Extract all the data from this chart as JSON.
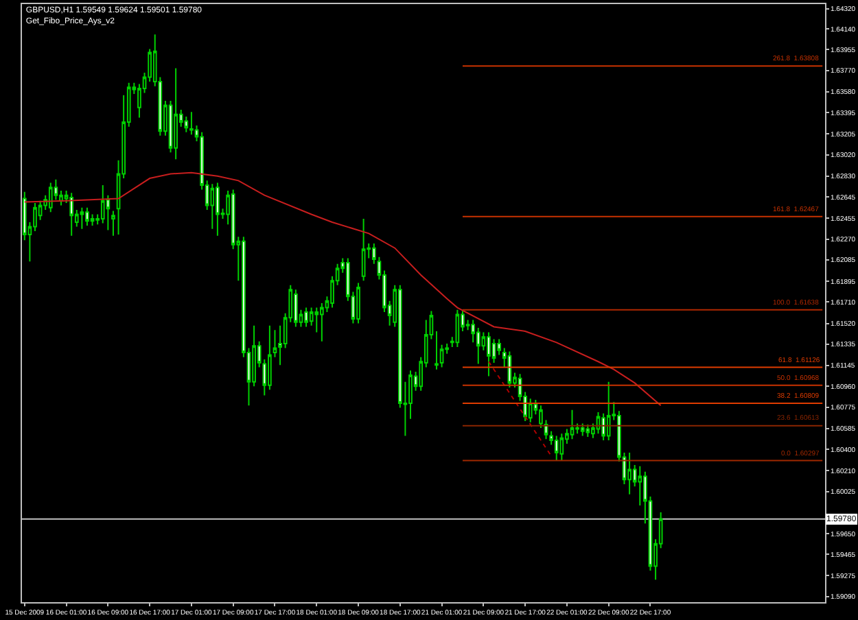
{
  "chart_data": {
    "type": "candlestick",
    "title": "GBPUSD,H1 1.59549 1.59624 1.59501 1.59780",
    "subtitle": "Get_Fibo_Price_Ays_v2",
    "color": "#00d000",
    "legend": false,
    "grid": false,
    "categories": [
      "15 Dec 2009",
      null,
      null,
      null,
      null,
      null,
      null,
      null,
      "16 Dec 01:00",
      null,
      null,
      null,
      null,
      null,
      null,
      null,
      "16 Dec 09:00",
      null,
      null,
      null,
      null,
      null,
      null,
      null,
      "16 Dec 17:00",
      null,
      null,
      null,
      null,
      null,
      null,
      null,
      "17 Dec 01:00",
      null,
      null,
      null,
      null,
      null,
      null,
      null,
      "17 Dec 09:00",
      null,
      null,
      null,
      null,
      null,
      null,
      null,
      "17 Dec 17:00",
      null,
      null,
      null,
      null,
      null,
      null,
      null,
      "18 Dec 01:00",
      null,
      null,
      null,
      null,
      null,
      null,
      null,
      "18 Dec 09:00",
      null,
      null,
      null,
      null,
      null,
      null,
      null,
      "18 Dec 17:00",
      null,
      null,
      null,
      null,
      null,
      null,
      null,
      "21 Dec 01:00",
      null,
      null,
      null,
      null,
      null,
      null,
      null,
      "21 Dec 09:00",
      null,
      null,
      null,
      null,
      null,
      null,
      null,
      "21 Dec 17:00",
      null,
      null,
      null,
      null,
      null,
      null,
      null,
      "22 Dec 01:00",
      null,
      null,
      null,
      null,
      null,
      null,
      null,
      "22 Dec 09:00",
      null,
      null,
      null,
      null,
      null,
      null,
      null,
      "22 Dec 17:00",
      null,
      null,
      null,
      null,
      null,
      null,
      null,
      null,
      null,
      null,
      null,
      null,
      null,
      null,
      null,
      null,
      null,
      null,
      null,
      null,
      null,
      null,
      null,
      null,
      null,
      null,
      null,
      null,
      null,
      null,
      null,
      null,
      null
    ],
    "ohlc": [
      [
        1.6263,
        1.6269,
        1.6226,
        1.6231
      ],
      [
        1.6231,
        1.6242,
        1.6207,
        1.6238
      ],
      [
        1.6238,
        1.6259,
        1.6234,
        1.6255
      ],
      [
        1.6248,
        1.6261,
        1.6244,
        1.6257
      ],
      [
        1.6257,
        1.6266,
        1.6253,
        1.6262
      ],
      [
        1.6255,
        1.6277,
        1.6251,
        1.6273
      ],
      [
        1.6273,
        1.628,
        1.6262,
        1.6266
      ],
      [
        1.6261,
        1.627,
        1.6257,
        1.6266
      ],
      [
        1.6263,
        1.627,
        1.6259,
        1.6266
      ],
      [
        1.6264,
        1.6268,
        1.623,
        1.6248
      ],
      [
        1.6242,
        1.6253,
        1.6238,
        1.6249
      ],
      [
        1.6249,
        1.6255,
        1.6236,
        1.6251
      ],
      [
        1.6251,
        1.6255,
        1.6239,
        1.6243
      ],
      [
        1.6243,
        1.6249,
        1.6239,
        1.6245
      ],
      [
        1.6244,
        1.6249,
        1.624,
        1.6245
      ],
      [
        1.6245,
        1.6275,
        1.6241,
        1.6261
      ],
      [
        1.6262,
        1.6266,
        1.6235,
        1.6254
      ],
      [
        1.6245,
        1.6252,
        1.623,
        1.6248
      ],
      [
        1.6254,
        1.6297,
        1.6231,
        1.6285
      ],
      [
        1.6285,
        1.6355,
        1.6281,
        1.6331
      ],
      [
        1.6331,
        1.6366,
        1.6327,
        1.6362
      ],
      [
        1.6362,
        1.6366,
        1.6356,
        1.636
      ],
      [
        1.6344,
        1.6365,
        1.6335,
        1.6361
      ],
      [
        1.6361,
        1.6375,
        1.6357,
        1.6371
      ],
      [
        1.6371,
        1.6396,
        1.6367,
        1.6393
      ],
      [
        1.6367,
        1.6409,
        1.6363,
        1.6394
      ],
      [
        1.6367,
        1.6371,
        1.6319,
        1.6323
      ],
      [
        1.6323,
        1.635,
        1.6319,
        1.6346
      ],
      [
        1.6346,
        1.635,
        1.6304,
        1.6308
      ],
      [
        1.6308,
        1.6379,
        1.6298,
        1.6338
      ],
      [
        1.6338,
        1.6342,
        1.6327,
        1.6331
      ],
      [
        1.6332,
        1.6336,
        1.6322,
        1.6326
      ],
      [
        1.6325,
        1.634,
        1.632,
        1.6324
      ],
      [
        1.6324,
        1.6328,
        1.6314,
        1.6318
      ],
      [
        1.6318,
        1.6322,
        1.6271,
        1.6275
      ],
      [
        1.6275,
        1.6279,
        1.6253,
        1.6257
      ],
      [
        1.6257,
        1.6276,
        1.6236,
        1.6272
      ],
      [
        1.6273,
        1.6277,
        1.623,
        1.6249
      ],
      [
        1.625,
        1.6254,
        1.6245,
        1.6249
      ],
      [
        1.6249,
        1.627,
        1.624,
        1.6266
      ],
      [
        1.6267,
        1.6271,
        1.6218,
        1.6222
      ],
      [
        1.6222,
        1.6229,
        1.619,
        1.6225
      ],
      [
        1.6225,
        1.6229,
        1.6122,
        1.6126
      ],
      [
        1.6126,
        1.613,
        1.6079,
        1.61
      ],
      [
        1.61,
        1.615,
        1.6096,
        1.6132
      ],
      [
        1.6132,
        1.6136,
        1.6113,
        1.6117
      ],
      [
        1.6116,
        1.612,
        1.6088,
        1.6097
      ],
      [
        1.6097,
        1.615,
        1.6093,
        1.6124
      ],
      [
        1.6126,
        1.6146,
        1.6122,
        1.613
      ],
      [
        1.6134,
        1.615,
        1.6115,
        1.6131
      ],
      [
        1.6134,
        1.6161,
        1.613,
        1.6157
      ],
      [
        1.6157,
        1.6186,
        1.6153,
        1.6182
      ],
      [
        1.6178,
        1.6182,
        1.6149,
        1.6153
      ],
      [
        1.6153,
        1.6164,
        1.6149,
        1.616
      ],
      [
        1.6162,
        1.6166,
        1.6149,
        1.6153
      ],
      [
        1.6154,
        1.6166,
        1.615,
        1.6162
      ],
      [
        1.6162,
        1.6166,
        1.6144,
        1.616
      ],
      [
        1.616,
        1.617,
        1.6136,
        1.6166
      ],
      [
        1.6166,
        1.6176,
        1.6162,
        1.6172
      ],
      [
        1.617,
        1.6194,
        1.6166,
        1.619
      ],
      [
        1.619,
        1.6205,
        1.6186,
        1.6201
      ],
      [
        1.6206,
        1.621,
        1.6197,
        1.6201
      ],
      [
        1.6206,
        1.621,
        1.6172,
        1.6176
      ],
      [
        1.6176,
        1.618,
        1.6152,
        1.6156
      ],
      [
        1.6156,
        1.6188,
        1.6152,
        1.6184
      ],
      [
        1.6194,
        1.6245,
        1.619,
        1.6218
      ],
      [
        1.6218,
        1.6223,
        1.621,
        1.6219
      ],
      [
        1.6219,
        1.6223,
        1.6205,
        1.6209
      ],
      [
        1.6207,
        1.6211,
        1.6191,
        1.6195
      ],
      [
        1.6195,
        1.6199,
        1.6162,
        1.6166
      ],
      [
        1.6168,
        1.6172,
        1.615,
        1.6159
      ],
      [
        1.6153,
        1.6186,
        1.6149,
        1.6182
      ],
      [
        1.6182,
        1.6186,
        1.6077,
        1.6081
      ],
      [
        1.608,
        1.61,
        1.6052,
        1.6081
      ],
      [
        1.6081,
        1.611,
        1.6067,
        1.6106
      ],
      [
        1.6105,
        1.6109,
        1.6092,
        1.6096
      ],
      [
        1.6096,
        1.6122,
        1.6092,
        1.6118
      ],
      [
        1.6117,
        1.6155,
        1.6113,
        1.6142
      ],
      [
        1.6142,
        1.6163,
        1.6138,
        1.6159
      ],
      [
        1.6115,
        1.6145,
        1.6111,
        1.6116
      ],
      [
        1.6117,
        1.6133,
        1.6113,
        1.6129
      ],
      [
        1.6129,
        1.6134,
        1.6125,
        1.613
      ],
      [
        1.6135,
        1.614,
        1.6131,
        1.6136
      ],
      [
        1.6135,
        1.6164,
        1.6131,
        1.616
      ],
      [
        1.616,
        1.6164,
        1.6145,
        1.6149
      ],
      [
        1.6151,
        1.6155,
        1.6146,
        1.615
      ],
      [
        1.6151,
        1.6155,
        1.6135,
        1.6143
      ],
      [
        1.6144,
        1.6148,
        1.6116,
        1.6132
      ],
      [
        1.6132,
        1.6144,
        1.6128,
        1.614
      ],
      [
        1.614,
        1.6144,
        1.6105,
        1.6123
      ],
      [
        1.6134,
        1.6138,
        1.6117,
        1.6121
      ],
      [
        1.6134,
        1.6138,
        1.6124,
        1.6128
      ],
      [
        1.6126,
        1.613,
        1.6113,
        1.6121
      ],
      [
        1.6123,
        1.6127,
        1.6095,
        1.6099
      ],
      [
        1.6099,
        1.6108,
        1.6095,
        1.6104
      ],
      [
        1.6103,
        1.6107,
        1.6083,
        1.6087
      ],
      [
        1.6087,
        1.6091,
        1.6065,
        1.6069
      ],
      [
        1.6068,
        1.6085,
        1.6064,
        1.6081
      ],
      [
        1.608,
        1.6084,
        1.6071,
        1.6075
      ],
      [
        1.6063,
        1.6079,
        1.6059,
        1.6075
      ],
      [
        1.6062,
        1.6066,
        1.6049,
        1.6053
      ],
      [
        1.6052,
        1.6056,
        1.6044,
        1.6048
      ],
      [
        1.6048,
        1.6052,
        1.603,
        1.6037
      ],
      [
        1.6036,
        1.6054,
        1.603,
        1.605
      ],
      [
        1.6049,
        1.6058,
        1.6045,
        1.6054
      ],
      [
        1.6053,
        1.6075,
        1.6049,
        1.6059
      ],
      [
        1.6058,
        1.6063,
        1.6054,
        1.6059
      ],
      [
        1.6059,
        1.6063,
        1.6052,
        1.6056
      ],
      [
        1.6058,
        1.6062,
        1.6051,
        1.6055
      ],
      [
        1.6054,
        1.6063,
        1.605,
        1.6059
      ],
      [
        1.6058,
        1.6073,
        1.6054,
        1.6069
      ],
      [
        1.6068,
        1.6072,
        1.6048,
        1.6052
      ],
      [
        1.6052,
        1.61,
        1.6048,
        1.607
      ],
      [
        1.6071,
        1.6082,
        1.6066,
        1.607
      ],
      [
        1.607,
        1.6074,
        1.6029,
        1.6033
      ],
      [
        1.6033,
        1.6037,
        1.6009,
        1.6013
      ],
      [
        1.6013,
        1.6037,
        1.6,
        1.6022
      ],
      [
        1.6022,
        1.6026,
        1.6007,
        1.6011
      ],
      [
        1.6011,
        1.6025,
        1.599,
        1.6016
      ],
      [
        1.6016,
        1.602,
        1.5974,
        1.5994
      ],
      [
        1.5994,
        1.5998,
        1.5932,
        1.5936
      ],
      [
        1.5936,
        1.596,
        1.5924,
        1.5956
      ],
      [
        1.5956,
        1.5984,
        1.5952,
        1.5978
      ],
      null,
      null,
      null,
      null,
      null,
      null,
      null,
      null,
      null,
      null,
      null,
      null,
      null,
      null,
      null,
      null,
      null,
      null,
      null,
      null,
      null,
      null,
      null,
      null,
      null,
      null,
      null,
      null,
      null,
      null,
      null
    ],
    "series": [
      {
        "type": "line",
        "color": "#c81e1e",
        "values": [
          1.626,
          null,
          null,
          null,
          null,
          null,
          null,
          null,
          1.6261,
          null,
          null,
          null,
          null,
          null,
          null,
          null,
          null,
          null,
          1.6263,
          null,
          null,
          null,
          null,
          null,
          1.6281,
          null,
          null,
          null,
          1.6285,
          null,
          null,
          null,
          1.6286,
          null,
          null,
          null,
          null,
          1.6283,
          null,
          null,
          null,
          1.6279,
          null,
          null,
          null,
          null,
          1.6266,
          null,
          null,
          null,
          null,
          null,
          null,
          null,
          null,
          1.6249,
          null,
          null,
          null,
          1.6242,
          null,
          null,
          null,
          null,
          null,
          null,
          1.6232,
          null,
          null,
          null,
          null,
          1.6219,
          null,
          null,
          null,
          null,
          1.6195,
          null,
          null,
          null,
          null,
          1.6174,
          null,
          1.6166,
          null,
          null,
          null,
          null,
          null,
          null,
          1.6149,
          null,
          null,
          null,
          null,
          null,
          1.6145,
          null,
          null,
          null,
          null,
          null,
          1.6135,
          null,
          null,
          null,
          null,
          null,
          null,
          null,
          1.6118,
          null,
          null,
          1.6111,
          null,
          null,
          null,
          1.6099,
          null,
          null,
          null,
          null,
          1.6079,
          null,
          null,
          null,
          null,
          null,
          null,
          null,
          null,
          null,
          null,
          null,
          null,
          null,
          null,
          null,
          null,
          null,
          null,
          null,
          null,
          null,
          null,
          null,
          null,
          null,
          null,
          null,
          null,
          null,
          null,
          null
        ]
      },
      {
        "type": "line",
        "color": "#b00000",
        "line_style": "dotted",
        "values": [
          null,
          null,
          null,
          null,
          null,
          null,
          null,
          null,
          null,
          null,
          null,
          null,
          null,
          null,
          null,
          null,
          null,
          null,
          null,
          null,
          null,
          null,
          null,
          null,
          null,
          null,
          null,
          null,
          null,
          null,
          null,
          null,
          null,
          null,
          null,
          null,
          null,
          null,
          null,
          null,
          null,
          null,
          null,
          null,
          null,
          null,
          null,
          null,
          null,
          null,
          null,
          null,
          null,
          null,
          null,
          null,
          null,
          null,
          null,
          null,
          null,
          null,
          null,
          null,
          null,
          null,
          null,
          null,
          null,
          null,
          null,
          null,
          null,
          null,
          null,
          null,
          null,
          null,
          null,
          null,
          null,
          null,
          null,
          null,
          null,
          null,
          null,
          null,
          null,
          1.6118,
          null,
          null,
          null,
          null,
          null,
          null,
          null,
          null,
          null,
          null,
          null,
          1.6034,
          null,
          null,
          null,
          null,
          null,
          null,
          null,
          null,
          null,
          null,
          null,
          null,
          null,
          null,
          null,
          null,
          null,
          null,
          null,
          null,
          null,
          null,
          null,
          null,
          null,
          null,
          null,
          null,
          null,
          null,
          null,
          null,
          null,
          null,
          null,
          null,
          null,
          null,
          null,
          null,
          null,
          null,
          null,
          null,
          null,
          null,
          null,
          null,
          null,
          null,
          null,
          null
        ]
      },
      {
        "type": "line",
        "name": "261.8  1.63808",
        "color": "#c83200",
        "values": [
          null,
          null,
          null,
          null,
          null,
          null,
          null,
          null,
          null,
          null,
          null,
          null,
          null,
          null,
          null,
          null,
          null,
          null,
          null,
          null,
          null,
          null,
          null,
          null,
          null,
          null,
          null,
          null,
          null,
          null,
          null,
          null,
          null,
          null,
          null,
          null,
          null,
          null,
          null,
          null,
          null,
          null,
          null,
          null,
          null,
          null,
          null,
          null,
          null,
          null,
          null,
          null,
          null,
          null,
          null,
          null,
          null,
          null,
          null,
          null,
          null,
          null,
          null,
          null,
          null,
          null,
          null,
          null,
          null,
          null,
          null,
          null,
          null,
          null,
          null,
          null,
          null,
          null,
          null,
          null,
          null,
          null,
          null,
          null,
          1.6381,
          null,
          null,
          null,
          null,
          null,
          null,
          null,
          null,
          null,
          null,
          null,
          null,
          null,
          null,
          null,
          null,
          null,
          null,
          null,
          null,
          null,
          null,
          null,
          null,
          null,
          null,
          null,
          null,
          null,
          null,
          null,
          null,
          null,
          null,
          null,
          null,
          null,
          null,
          null,
          null,
          null,
          null,
          null,
          null,
          null,
          null,
          null,
          null,
          null,
          null,
          null,
          null,
          null,
          null,
          null,
          null,
          null,
          null,
          null,
          null,
          null,
          null,
          null,
          null,
          null,
          null,
          null,
          null,
          1.6381
        ]
      },
      {
        "type": "line",
        "name": "161.8  1.62467",
        "color": "#c83200",
        "values": [
          null,
          null,
          null,
          null,
          null,
          null,
          null,
          null,
          null,
          null,
          null,
          null,
          null,
          null,
          null,
          null,
          null,
          null,
          null,
          null,
          null,
          null,
          null,
          null,
          null,
          null,
          null,
          null,
          null,
          null,
          null,
          null,
          null,
          null,
          null,
          null,
          null,
          null,
          null,
          null,
          null,
          null,
          null,
          null,
          null,
          null,
          null,
          null,
          null,
          null,
          null,
          null,
          null,
          null,
          null,
          null,
          null,
          null,
          null,
          null,
          null,
          null,
          null,
          null,
          null,
          null,
          null,
          null,
          null,
          null,
          null,
          null,
          null,
          null,
          null,
          null,
          null,
          null,
          null,
          null,
          null,
          null,
          null,
          null,
          1.6247,
          null,
          null,
          null,
          null,
          null,
          null,
          null,
          null,
          null,
          null,
          null,
          null,
          null,
          null,
          null,
          null,
          null,
          null,
          null,
          null,
          null,
          null,
          null,
          null,
          null,
          null,
          null,
          null,
          null,
          null,
          null,
          null,
          null,
          null,
          null,
          null,
          null,
          null,
          null,
          null,
          null,
          null,
          null,
          null,
          null,
          null,
          null,
          null,
          null,
          null,
          null,
          null,
          null,
          null,
          null,
          null,
          null,
          null,
          null,
          null,
          null,
          null,
          null,
          null,
          null,
          null,
          null,
          null,
          1.6247
        ]
      },
      {
        "type": "line",
        "name": "100.0  1.61638",
        "color": "#b02800",
        "values": [
          null,
          null,
          null,
          null,
          null,
          null,
          null,
          null,
          null,
          null,
          null,
          null,
          null,
          null,
          null,
          null,
          null,
          null,
          null,
          null,
          null,
          null,
          null,
          null,
          null,
          null,
          null,
          null,
          null,
          null,
          null,
          null,
          null,
          null,
          null,
          null,
          null,
          null,
          null,
          null,
          null,
          null,
          null,
          null,
          null,
          null,
          null,
          null,
          null,
          null,
          null,
          null,
          null,
          null,
          null,
          null,
          null,
          null,
          null,
          null,
          null,
          null,
          null,
          null,
          null,
          null,
          null,
          null,
          null,
          null,
          null,
          null,
          null,
          null,
          null,
          null,
          null,
          null,
          null,
          null,
          null,
          null,
          null,
          null,
          1.6164,
          null,
          null,
          null,
          null,
          null,
          null,
          null,
          null,
          null,
          null,
          null,
          null,
          null,
          null,
          null,
          null,
          null,
          null,
          null,
          null,
          null,
          null,
          null,
          null,
          null,
          null,
          null,
          null,
          null,
          null,
          null,
          null,
          null,
          null,
          null,
          null,
          null,
          null,
          null,
          null,
          null,
          null,
          null,
          null,
          null,
          null,
          null,
          null,
          null,
          null,
          null,
          null,
          null,
          null,
          null,
          null,
          null,
          null,
          null,
          null,
          null,
          null,
          null,
          null,
          null,
          null,
          null,
          null,
          1.6164
        ]
      },
      {
        "type": "line",
        "name": "61.8  1.61126",
        "color": "#e03c00",
        "values": [
          null,
          null,
          null,
          null,
          null,
          null,
          null,
          null,
          null,
          null,
          null,
          null,
          null,
          null,
          null,
          null,
          null,
          null,
          null,
          null,
          null,
          null,
          null,
          null,
          null,
          null,
          null,
          null,
          null,
          null,
          null,
          null,
          null,
          null,
          null,
          null,
          null,
          null,
          null,
          null,
          null,
          null,
          null,
          null,
          null,
          null,
          null,
          null,
          null,
          null,
          null,
          null,
          null,
          null,
          null,
          null,
          null,
          null,
          null,
          null,
          null,
          null,
          null,
          null,
          null,
          null,
          null,
          null,
          null,
          null,
          null,
          null,
          null,
          null,
          null,
          null,
          null,
          null,
          null,
          null,
          null,
          null,
          null,
          null,
          1.6113,
          null,
          null,
          null,
          null,
          null,
          null,
          null,
          null,
          null,
          null,
          null,
          null,
          null,
          null,
          null,
          null,
          null,
          null,
          null,
          null,
          null,
          null,
          null,
          null,
          null,
          null,
          null,
          null,
          null,
          null,
          null,
          null,
          null,
          null,
          null,
          null,
          null,
          null,
          null,
          null,
          null,
          null,
          null,
          null,
          null,
          null,
          null,
          null,
          null,
          null,
          null,
          null,
          null,
          null,
          null,
          null,
          null,
          null,
          null,
          null,
          null,
          null,
          null,
          null,
          null,
          null,
          null,
          null,
          1.6113
        ]
      },
      {
        "type": "line",
        "name": "50.0  1.60968",
        "color": "#c83200",
        "values": [
          null,
          null,
          null,
          null,
          null,
          null,
          null,
          null,
          null,
          null,
          null,
          null,
          null,
          null,
          null,
          null,
          null,
          null,
          null,
          null,
          null,
          null,
          null,
          null,
          null,
          null,
          null,
          null,
          null,
          null,
          null,
          null,
          null,
          null,
          null,
          null,
          null,
          null,
          null,
          null,
          null,
          null,
          null,
          null,
          null,
          null,
          null,
          null,
          null,
          null,
          null,
          null,
          null,
          null,
          null,
          null,
          null,
          null,
          null,
          null,
          null,
          null,
          null,
          null,
          null,
          null,
          null,
          null,
          null,
          null,
          null,
          null,
          null,
          null,
          null,
          null,
          null,
          null,
          null,
          null,
          null,
          null,
          null,
          null,
          1.6097,
          null,
          null,
          null,
          null,
          null,
          null,
          null,
          null,
          null,
          null,
          null,
          null,
          null,
          null,
          null,
          null,
          null,
          null,
          null,
          null,
          null,
          null,
          null,
          null,
          null,
          null,
          null,
          null,
          null,
          null,
          null,
          null,
          null,
          null,
          null,
          null,
          null,
          null,
          null,
          null,
          null,
          null,
          null,
          null,
          null,
          null,
          null,
          null,
          null,
          null,
          null,
          null,
          null,
          null,
          null,
          null,
          null,
          null,
          null,
          null,
          null,
          null,
          null,
          null,
          null,
          null,
          null,
          null,
          1.6097
        ]
      },
      {
        "type": "line",
        "name": "38.2  1.60809",
        "color": "#e03c00",
        "values": [
          null,
          null,
          null,
          null,
          null,
          null,
          null,
          null,
          null,
          null,
          null,
          null,
          null,
          null,
          null,
          null,
          null,
          null,
          null,
          null,
          null,
          null,
          null,
          null,
          null,
          null,
          null,
          null,
          null,
          null,
          null,
          null,
          null,
          null,
          null,
          null,
          null,
          null,
          null,
          null,
          null,
          null,
          null,
          null,
          null,
          null,
          null,
          null,
          null,
          null,
          null,
          null,
          null,
          null,
          null,
          null,
          null,
          null,
          null,
          null,
          null,
          null,
          null,
          null,
          null,
          null,
          null,
          null,
          null,
          null,
          null,
          null,
          null,
          null,
          null,
          null,
          null,
          null,
          null,
          null,
          null,
          null,
          null,
          null,
          1.6081,
          null,
          null,
          null,
          null,
          null,
          null,
          null,
          null,
          null,
          null,
          null,
          null,
          null,
          null,
          null,
          null,
          null,
          null,
          null,
          null,
          null,
          null,
          null,
          null,
          null,
          null,
          null,
          null,
          null,
          null,
          null,
          null,
          null,
          null,
          null,
          null,
          null,
          null,
          null,
          null,
          null,
          null,
          null,
          null,
          null,
          null,
          null,
          null,
          null,
          null,
          null,
          null,
          null,
          null,
          null,
          null,
          null,
          null,
          null,
          null,
          null,
          null,
          null,
          null,
          null,
          null,
          null,
          null,
          1.6081
        ]
      },
      {
        "type": "line",
        "name": "23.6  1.60613",
        "color": "#8b2500",
        "values": [
          null,
          null,
          null,
          null,
          null,
          null,
          null,
          null,
          null,
          null,
          null,
          null,
          null,
          null,
          null,
          null,
          null,
          null,
          null,
          null,
          null,
          null,
          null,
          null,
          null,
          null,
          null,
          null,
          null,
          null,
          null,
          null,
          null,
          null,
          null,
          null,
          null,
          null,
          null,
          null,
          null,
          null,
          null,
          null,
          null,
          null,
          null,
          null,
          null,
          null,
          null,
          null,
          null,
          null,
          null,
          null,
          null,
          null,
          null,
          null,
          null,
          null,
          null,
          null,
          null,
          null,
          null,
          null,
          null,
          null,
          null,
          null,
          null,
          null,
          null,
          null,
          null,
          null,
          null,
          null,
          null,
          null,
          null,
          null,
          1.6061,
          null,
          null,
          null,
          null,
          null,
          null,
          null,
          null,
          null,
          null,
          null,
          null,
          null,
          null,
          null,
          null,
          null,
          null,
          null,
          null,
          null,
          null,
          null,
          null,
          null,
          null,
          null,
          null,
          null,
          null,
          null,
          null,
          null,
          null,
          null,
          null,
          null,
          null,
          null,
          null,
          null,
          null,
          null,
          null,
          null,
          null,
          null,
          null,
          null,
          null,
          null,
          null,
          null,
          null,
          null,
          null,
          null,
          null,
          null,
          null,
          null,
          null,
          null,
          null,
          null,
          null,
          null,
          null,
          1.6061
        ]
      },
      {
        "type": "line",
        "name": "0.0  1.60297",
        "color": "#a02800",
        "values": [
          null,
          null,
          null,
          null,
          null,
          null,
          null,
          null,
          null,
          null,
          null,
          null,
          null,
          null,
          null,
          null,
          null,
          null,
          null,
          null,
          null,
          null,
          null,
          null,
          null,
          null,
          null,
          null,
          null,
          null,
          null,
          null,
          null,
          null,
          null,
          null,
          null,
          null,
          null,
          null,
          null,
          null,
          null,
          null,
          null,
          null,
          null,
          null,
          null,
          null,
          null,
          null,
          null,
          null,
          null,
          null,
          null,
          null,
          null,
          null,
          null,
          null,
          null,
          null,
          null,
          null,
          null,
          null,
          null,
          null,
          null,
          null,
          null,
          null,
          null,
          null,
          null,
          null,
          null,
          null,
          null,
          null,
          null,
          null,
          1.603,
          null,
          null,
          null,
          null,
          null,
          null,
          null,
          null,
          null,
          null,
          null,
          null,
          null,
          null,
          null,
          null,
          null,
          null,
          null,
          null,
          null,
          null,
          null,
          null,
          null,
          null,
          null,
          null,
          null,
          null,
          null,
          null,
          null,
          null,
          null,
          null,
          null,
          null,
          null,
          null,
          null,
          null,
          null,
          null,
          null,
          null,
          null,
          null,
          null,
          null,
          null,
          null,
          null,
          null,
          null,
          null,
          null,
          null,
          null,
          null,
          null,
          null,
          null,
          null,
          null,
          null,
          null,
          null,
          1.603
        ]
      }
    ],
    "ref_lines": [
      {
        "axis": "y",
        "value": 1.5978,
        "label": "1.59780",
        "color": "#c0c0c0"
      }
    ],
    "ylim": [
      1.5904,
      1.6436
    ],
    "yticks": [
      {
        "value": 1.5909,
        "label": "1.59090"
      },
      1.59275,
      1.59465,
      {
        "value": 1.5965,
        "label": "1.59650"
      },
      1.60025,
      {
        "value": 1.6021,
        "label": "1.60210"
      },
      {
        "value": 1.604,
        "label": "1.60400"
      },
      1.60585,
      1.60775,
      {
        "value": 1.6096,
        "label": "1.60960"
      },
      1.61145,
      1.61335,
      {
        "value": 1.6152,
        "label": "1.61520"
      },
      {
        "value": 1.6171,
        "label": "1.61710"
      },
      1.61895,
      1.62085,
      {
        "value": 1.6227,
        "label": "1.62270"
      },
      1.62455,
      1.62645,
      {
        "value": 1.6283,
        "label": "1.62830"
      },
      {
        "value": 1.6302,
        "label": "1.63020"
      },
      1.63205,
      1.63395,
      {
        "value": 1.6358,
        "label": "1.63580"
      },
      {
        "value": 1.6377,
        "label": "1.63770"
      },
      1.63955,
      {
        "value": 1.6414,
        "label": "1.64140"
      },
      {
        "value": 1.6432,
        "label": "1.64320"
      }
    ]
  }
}
